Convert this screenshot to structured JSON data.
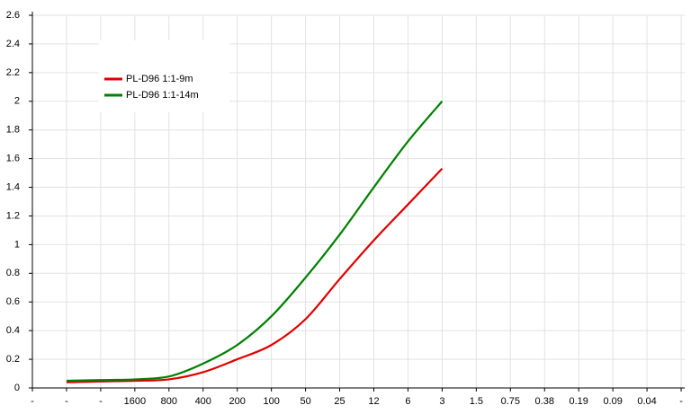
{
  "chart_data": {
    "type": "line",
    "categories": [
      "-",
      "-",
      "-",
      "1600",
      "800",
      "400",
      "200",
      "100",
      "50",
      "25",
      "12",
      "6",
      "3",
      "1.5",
      "0.75",
      "0.38",
      "0.19",
      "0.09",
      "0.04",
      "-"
    ],
    "series": [
      {
        "name": "PL-D96 1:1-9m",
        "color": "#e00000",
        "values": [
          null,
          0.04,
          0.045,
          0.05,
          0.06,
          0.11,
          0.2,
          0.3,
          0.48,
          0.76,
          1.03,
          1.28,
          1.53,
          null,
          null,
          null,
          null,
          null,
          null,
          null
        ]
      },
      {
        "name": "PL-D96 1:1-14m",
        "color": "#008000",
        "values": [
          null,
          0.05,
          0.055,
          0.06,
          0.08,
          0.17,
          0.3,
          0.5,
          0.77,
          1.07,
          1.4,
          1.72,
          2.0,
          null,
          null,
          null,
          null,
          null,
          null,
          null
        ]
      }
    ],
    "ylim": [
      0,
      2.6
    ],
    "yticks": [
      0,
      0.2,
      0.4,
      0.6,
      0.8,
      1,
      1.2,
      1.4,
      1.6,
      1.8,
      2,
      2.2,
      2.4,
      2.6
    ],
    "grid": true,
    "legend": "upper left"
  }
}
